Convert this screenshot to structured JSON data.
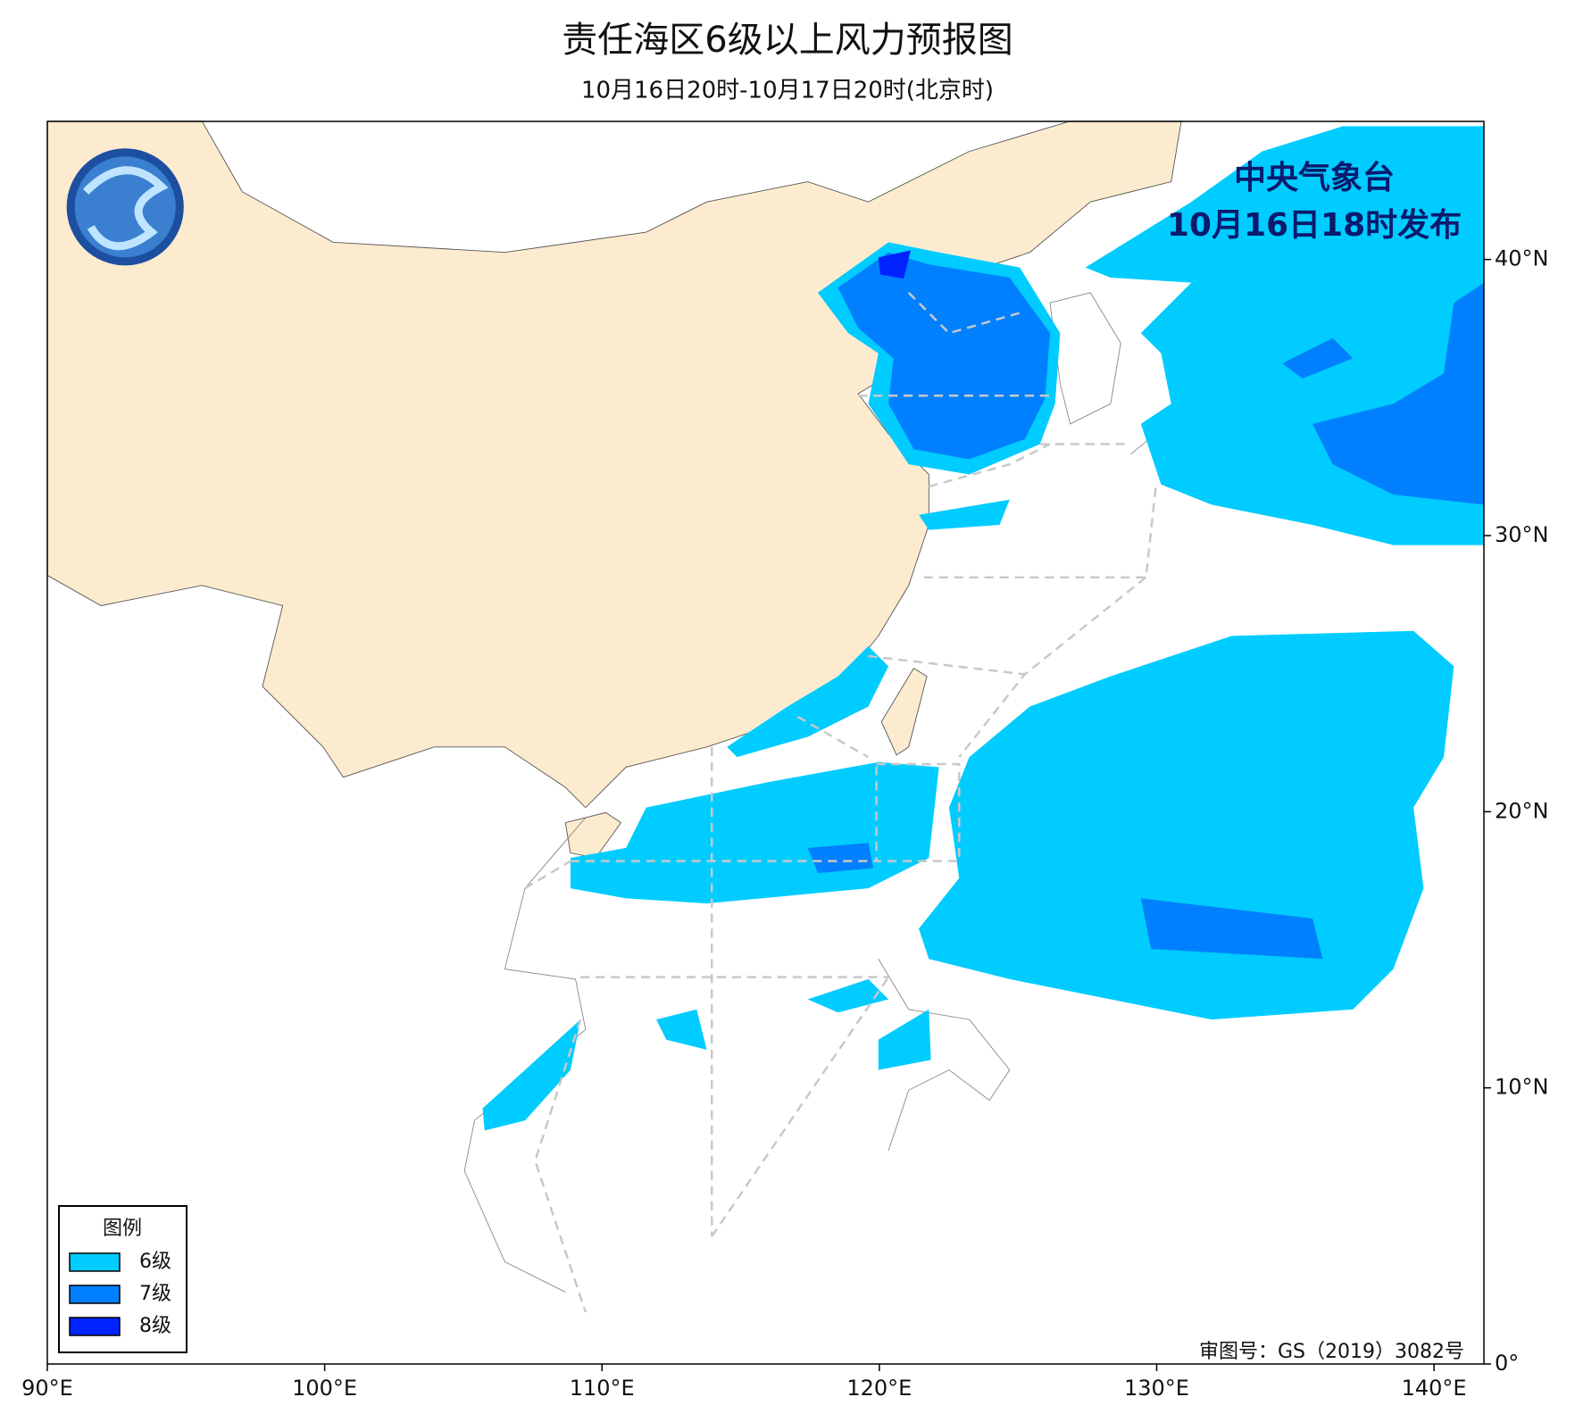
{
  "map": {
    "title": "责任海区6级以上风力预报图",
    "subtitle": "10月16日20时-10月17日20时(北京时)",
    "issuer": [
      "中央气象台",
      "10月16日18时发布"
    ],
    "approval": "审图号：GS（2019）3082号",
    "xlim": [
      90,
      141.8
    ],
    "ylim": [
      0,
      45
    ],
    "xticks": [
      {
        "value": 90,
        "label": "90°E"
      },
      {
        "value": 100,
        "label": "100°E"
      },
      {
        "value": 110,
        "label": "110°E"
      },
      {
        "value": 120,
        "label": "120°E"
      },
      {
        "value": 130,
        "label": "130°E"
      },
      {
        "value": 140,
        "label": "140°E"
      }
    ],
    "yticks": [
      {
        "value": 0,
        "label": "0°"
      },
      {
        "value": 10,
        "label": "10°N"
      },
      {
        "value": 20,
        "label": "20°N"
      },
      {
        "value": 30,
        "label": "30°N"
      },
      {
        "value": 40,
        "label": "40°N"
      }
    ],
    "legend": {
      "title": "图例",
      "items": [
        {
          "label": "6级",
          "color": "#00ccff"
        },
        {
          "label": "7级",
          "color": "#0080ff"
        },
        {
          "label": "8级",
          "color": "#0022ff"
        }
      ]
    }
  }
}
